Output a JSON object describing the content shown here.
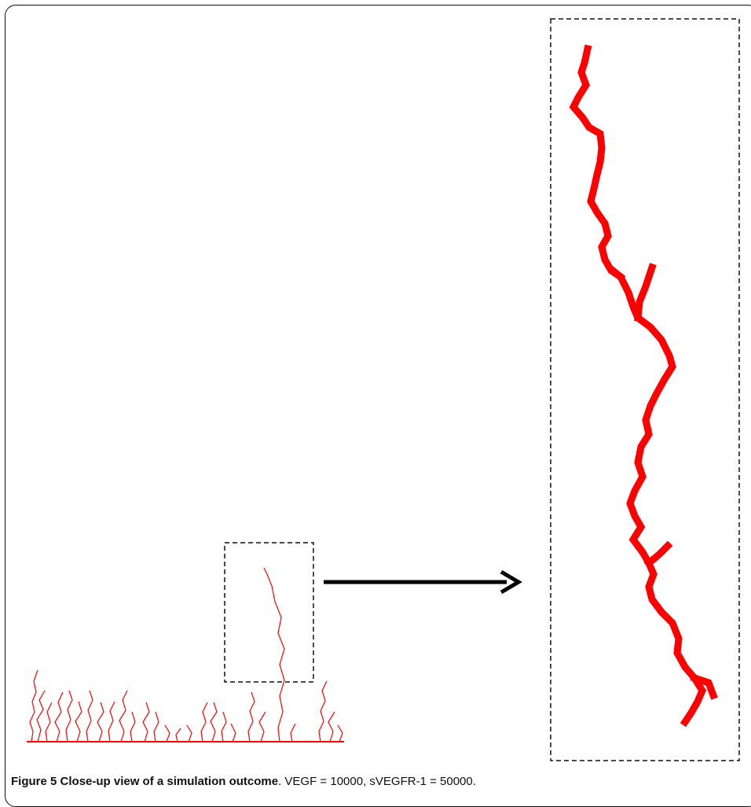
{
  "figure": {
    "label": "Figure 5",
    "title": "Close-up view of a simulation outcome",
    "title_punct": ".",
    "parameters": "VEGF = 10000, sVEGFR-1 = 50000."
  },
  "colors": {
    "vessel": "#ff0000",
    "frame": "#111111",
    "arrow": "#000000"
  },
  "icons": {
    "arrow": "right-arrow-icon"
  }
}
